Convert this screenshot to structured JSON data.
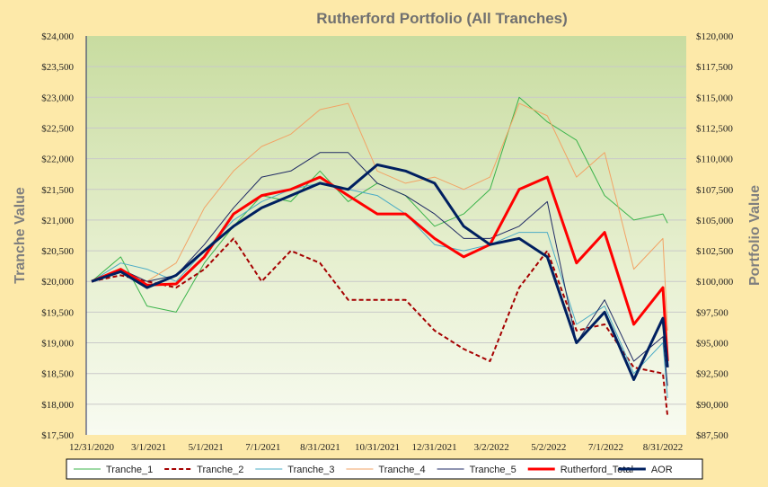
{
  "chart_data": {
    "type": "line",
    "title": "Rutherford Portfolio (All Tranches)",
    "ylabel": "Tranche Value",
    "y2label": "Portfolio Value",
    "ylim": [
      17500,
      24000
    ],
    "y2lim": [
      87500,
      120000
    ],
    "y_ticks": [
      "$17,500",
      "$18,000",
      "$18,500",
      "$19,000",
      "$19,500",
      "$20,000",
      "$20,500",
      "$21,000",
      "$21,500",
      "$22,000",
      "$22,500",
      "$23,000",
      "$23,500",
      "$24,000"
    ],
    "y2_ticks": [
      "$87,500",
      "$90,000",
      "$92,500",
      "$95,000",
      "$97,500",
      "$100,000",
      "$102,500",
      "$105,000",
      "$107,500",
      "$110,000",
      "$112,500",
      "$115,000",
      "$117,500",
      "$120,000"
    ],
    "x_ticks": [
      "12/31/2020",
      "3/1/2021",
      "5/1/2021",
      "7/1/2021",
      "8/31/2021",
      "10/31/2021",
      "12/31/2021",
      "3/2/2022",
      "5/2/2022",
      "7/1/2022",
      "8/31/2022"
    ],
    "x": [
      "2020-12-31",
      "2021-01-31",
      "2021-02-28",
      "2021-03-31",
      "2021-04-30",
      "2021-05-31",
      "2021-06-30",
      "2021-07-31",
      "2021-08-31",
      "2021-09-30",
      "2021-10-31",
      "2021-11-30",
      "2021-12-31",
      "2022-01-31",
      "2022-02-28",
      "2022-03-31",
      "2022-04-30",
      "2022-05-31",
      "2022-06-30",
      "2022-07-31",
      "2022-08-31",
      "2022-09-05"
    ],
    "legend_position": "bottom",
    "series": [
      {
        "name": "Tranche_1",
        "color": "#3cb44b",
        "dash": "solid",
        "width": 1,
        "axis": "left",
        "values": [
          20000,
          20400,
          19600,
          19500,
          20300,
          20900,
          21400,
          21300,
          21800,
          21300,
          21600,
          21400,
          20900,
          21100,
          21500,
          23000,
          22600,
          22300,
          21400,
          21000,
          21100,
          20950
        ]
      },
      {
        "name": "Tranche_2",
        "color": "#a50000",
        "dash": "dashed",
        "width": 2,
        "axis": "left",
        "values": [
          20000,
          20100,
          20000,
          19900,
          20200,
          20700,
          20000,
          20500,
          20300,
          19700,
          19700,
          19700,
          19200,
          18900,
          18700,
          19900,
          20500,
          19200,
          19300,
          18600,
          18500,
          17800
        ]
      },
      {
        "name": "Tranche_3",
        "color": "#4bacc6",
        "dash": "solid",
        "width": 1,
        "axis": "left",
        "values": [
          20000,
          20300,
          20200,
          20000,
          20500,
          21000,
          21300,
          21500,
          21600,
          21500,
          21400,
          21100,
          20600,
          20500,
          20600,
          20800,
          20800,
          19300,
          19600,
          18500,
          19000,
          18100
        ]
      },
      {
        "name": "Tranche_4",
        "color": "#f2a365",
        "dash": "solid",
        "width": 1,
        "axis": "left",
        "values": [
          20000,
          20200,
          20000,
          20300,
          21200,
          21800,
          22200,
          22400,
          22800,
          22900,
          21800,
          21600,
          21700,
          21500,
          21700,
          22900,
          22700,
          21700,
          22100,
          20200,
          20700,
          19200
        ]
      },
      {
        "name": "Tranche_5",
        "color": "#1f2a64",
        "dash": "solid",
        "width": 1,
        "axis": "left",
        "values": [
          20000,
          20200,
          20000,
          20100,
          20600,
          21200,
          21700,
          21800,
          22100,
          22100,
          21600,
          21400,
          21100,
          20700,
          20700,
          20900,
          21300,
          19000,
          19700,
          18700,
          19100,
          18300
        ]
      },
      {
        "name": "Rutherford_Total",
        "color": "#ff0000",
        "dash": "solid",
        "width": 3,
        "axis": "right",
        "values": [
          100000,
          101000,
          99700,
          99800,
          102000,
          105500,
          107000,
          107500,
          108500,
          107000,
          105500,
          105500,
          103500,
          102000,
          103000,
          107500,
          108500,
          101500,
          104000,
          96500,
          99500,
          93500
        ]
      },
      {
        "name": "AOR",
        "color": "#002060",
        "dash": "solid",
        "width": 3,
        "axis": "right",
        "values": [
          100000,
          100800,
          99500,
          100500,
          102500,
          104500,
          106000,
          107000,
          108000,
          107500,
          109500,
          109000,
          108000,
          104500,
          103000,
          103500,
          102000,
          95000,
          97500,
          92000,
          97000,
          93000
        ]
      }
    ]
  }
}
